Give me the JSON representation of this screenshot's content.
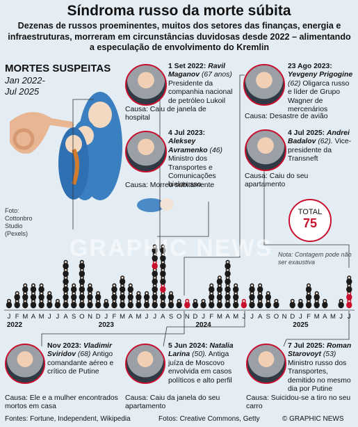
{
  "title": "Síndroma russo da morte súbita",
  "subtitle": "Dezenas de russos proeminentes, muitos dos setores das finanças, energia e infraestruturas, morreram em circunstâncias duvidosas desde 2022 – alimentando a especulação de envolvimento do Kremlin",
  "section_title": "MORTES SUSPEITAS",
  "period": "Jan 2022- Jul 2025",
  "photo_credit": "Foto: Cottonbro Studio (Pexels)",
  "total": {
    "label": "TOTAL",
    "value": "75"
  },
  "note": "Nota: Contagem pode não ser exaustiva",
  "watermark": "GRAPHIC NEWS",
  "cases": [
    {
      "date": "1 Set 2022:",
      "name": "Ravil Maganov",
      "age": "(67 anos)",
      "desc": "Presidente da companhia nacional de petróleo Lukoil",
      "cause": "Causa: Caiu de janela de hospital"
    },
    {
      "date": "4 Jul 2023:",
      "name": "Aleksey Avramenko",
      "age": "(46)",
      "desc": "Ministro dos Transportes e Comunicações bielorusso",
      "cause": "Causa: Morreu subitamente"
    },
    {
      "date": "23 Ago 2023:",
      "name": "Yevgeny Prigogine",
      "age": "(62)",
      "desc": "Oligarca russo e líder de Grupo Wagner de mercenários",
      "cause": "Causa: Desastre de avião"
    },
    {
      "date": "4 Jul 2025:",
      "name": "Andrei Badalov",
      "age": "(62).",
      "desc": "Vice-presidente da Transneft",
      "cause": "Causa: Caiu do seu apartamento"
    },
    {
      "date": "Nov 2023:",
      "name": "Vladimir Sviridov",
      "age": "(68)",
      "desc": "Antigo comandante aéreo e crítico de Putine",
      "cause": "Causa: Ele e a mulher encontrados mortos em casa"
    },
    {
      "date": "5 Jun 2024:",
      "name": "Natalia Larina",
      "age": "(50).",
      "desc": "Antiga juíza de Moscovo envolvida em casos políticos e alto perfil",
      "cause": "Causa: Caiu da janela do seu apartamento"
    },
    {
      "date": "7 Jul 2025:",
      "name": "Roman Starovoyt",
      "age": "(53)",
      "desc": "Ministro russo dos Transportes, demitido no mesmo dia por Putine",
      "cause": "Causa: Suicidou-se a tiro no seu carro"
    }
  ],
  "sources": "Fontes: Fortune, Independent, Wikipedia",
  "photos": "Fotos: Creative Commons, Getty",
  "brand": "© GRAPHIC NEWS",
  "colors": {
    "highlight": "#c8102e",
    "doll": "#1a1a1a",
    "background": "#e4edf4"
  },
  "chart_data": {
    "type": "bar",
    "title": "MORTES SUSPEITAS",
    "month_labels": [
      "J",
      "F",
      "M",
      "A",
      "M",
      "J",
      "J",
      "A",
      "S",
      "O",
      "N",
      "D",
      "J",
      "F",
      "M",
      "A",
      "M",
      "J",
      "J",
      "A",
      "S",
      "O",
      "N",
      "D",
      "J",
      "F",
      "M",
      "A",
      "M",
      "J",
      "J",
      "A",
      "S",
      "O",
      "N",
      "D",
      "J",
      "F",
      "M",
      "A",
      "M",
      "J",
      "J"
    ],
    "year_labels": [
      {
        "label": "2022",
        "month_index": 0
      },
      {
        "label": "2023",
        "month_index": 12
      },
      {
        "label": "2024",
        "month_index": 24
      },
      {
        "label": "2025",
        "month_index": 36
      }
    ],
    "values": [
      1,
      2,
      3,
      3,
      3,
      2,
      1,
      6,
      3,
      6,
      3,
      2,
      1,
      3,
      4,
      3,
      2,
      2,
      8,
      8,
      2,
      1,
      1,
      1,
      1,
      3,
      4,
      6,
      3,
      1,
      3,
      3,
      2,
      1,
      0,
      1,
      1,
      3,
      2,
      1,
      0,
      1,
      4
    ],
    "highlighted": [
      {
        "month_index": 8,
        "level": 6
      },
      {
        "month_index": 18,
        "level": 6
      },
      {
        "month_index": 19,
        "level": 3
      },
      {
        "month_index": 22,
        "level": 1
      },
      {
        "month_index": 29,
        "level": 1
      },
      {
        "month_index": 42,
        "level": 2
      },
      {
        "month_index": 42,
        "level": 1
      }
    ]
  }
}
